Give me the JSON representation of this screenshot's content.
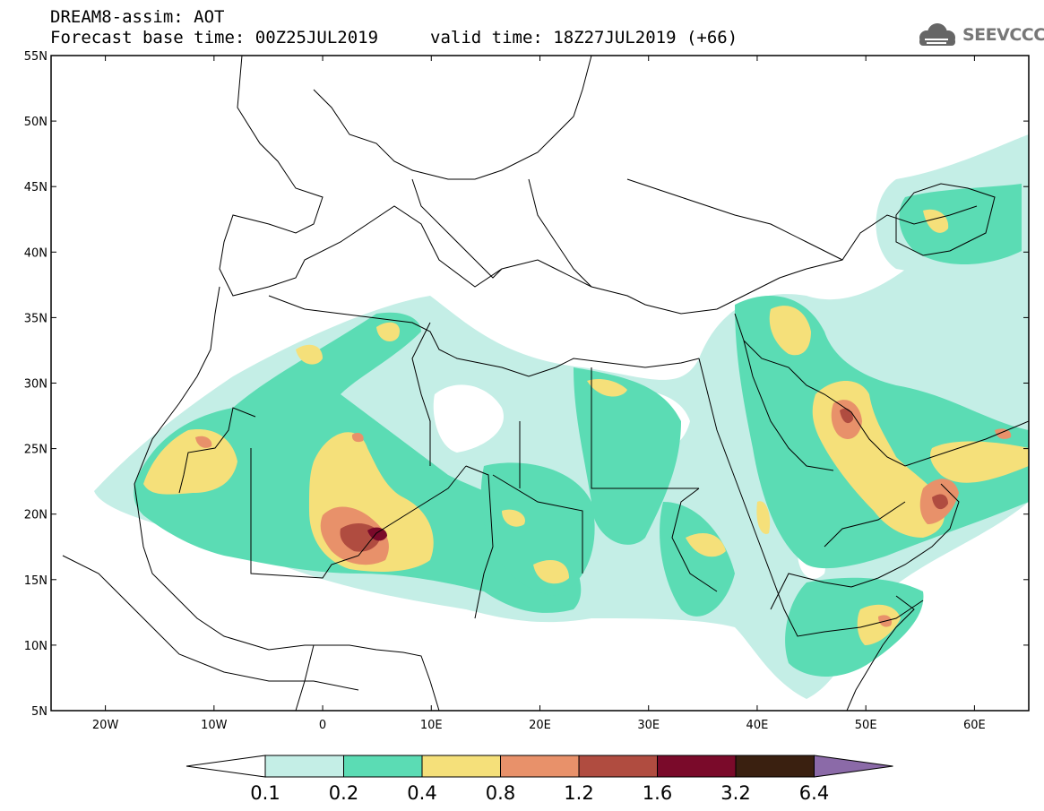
{
  "header": {
    "title_line_1": "DREAM8-assim: AOT",
    "title_line_2": "Forecast base time: 00Z25JUL2019",
    "valid_time": "valid time: 18Z27JUL2019 (+66)",
    "logo_text": "SEEVCCC"
  },
  "map": {
    "projection": "lat-lon",
    "lon_range": [
      -25,
      65
    ],
    "lat_range": [
      5,
      55
    ],
    "lat_ticks": [
      "5N",
      "10N",
      "15N",
      "20N",
      "25N",
      "30N",
      "35N",
      "40N",
      "45N",
      "50N",
      "55N"
    ],
    "lon_ticks": [
      "20W",
      "10W",
      "0",
      "10E",
      "20E",
      "30E",
      "40E",
      "50E",
      "60E"
    ],
    "variable": "AOT"
  },
  "colorbar": {
    "labels": [
      "0.1",
      "0.2",
      "0.4",
      "0.8",
      "1.2",
      "1.6",
      "3.2",
      "6.4"
    ],
    "colors": [
      "#ffffff",
      "#c4eee6",
      "#5bdcb4",
      "#f5e07a",
      "#e8916a",
      "#b04c40",
      "#7a0a2a",
      "#3a2010",
      "#8b6aa8"
    ]
  }
}
